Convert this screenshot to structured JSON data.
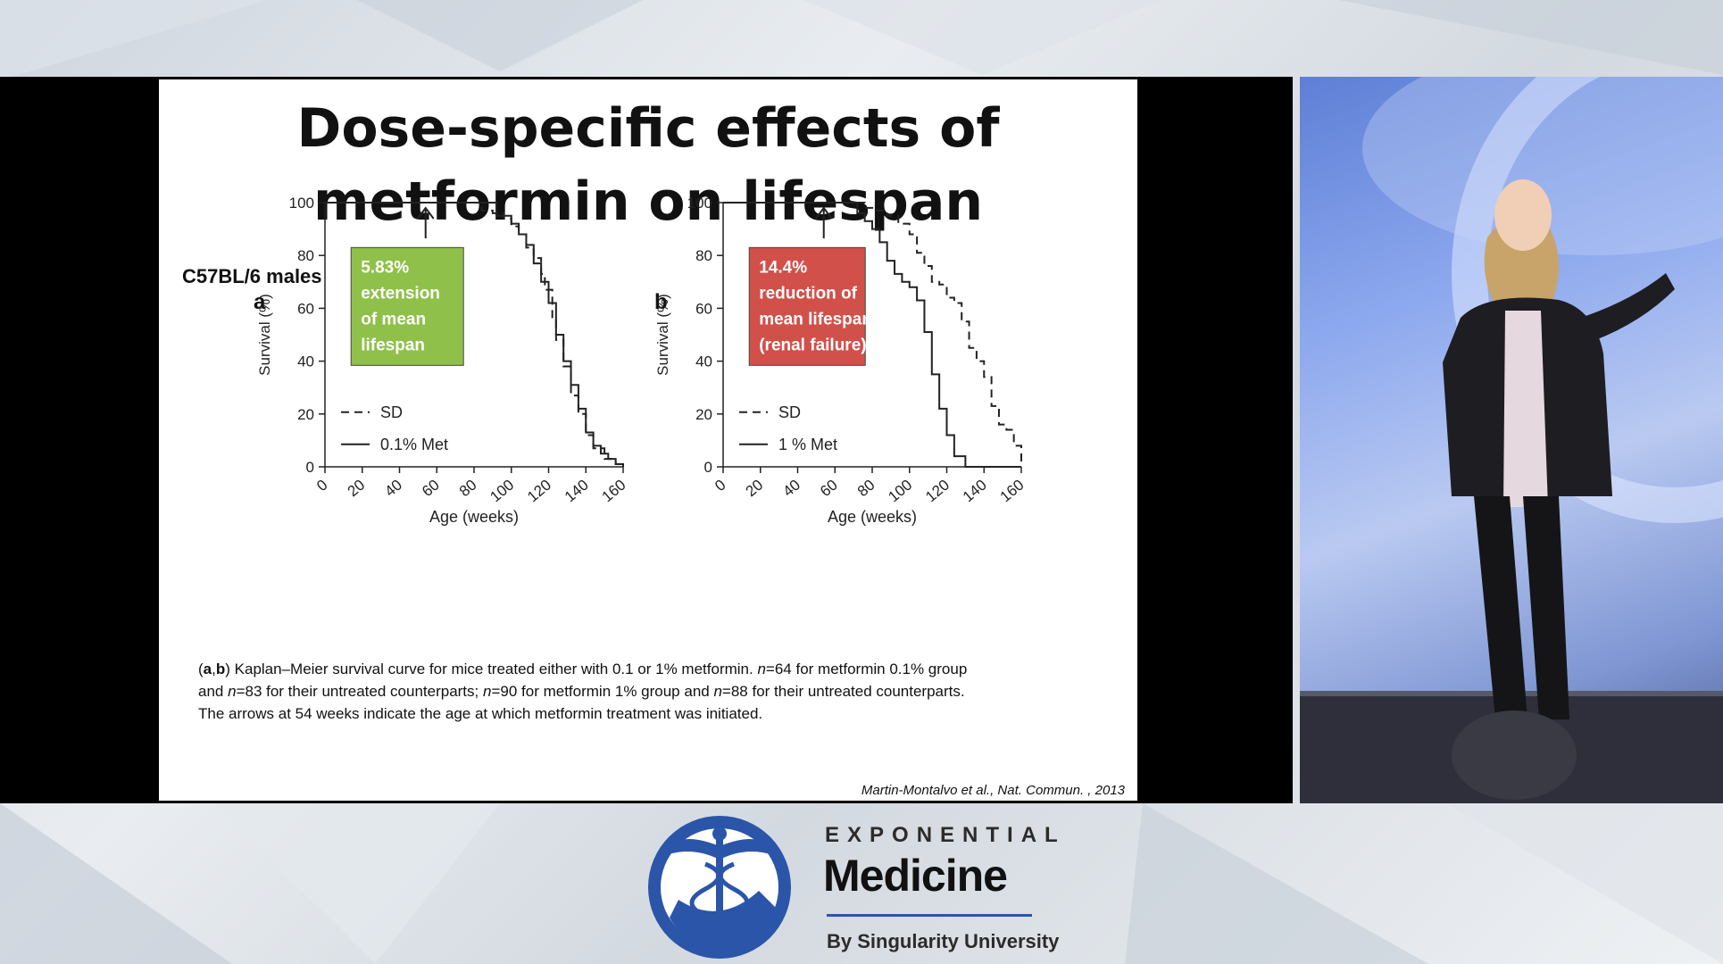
{
  "slide": {
    "title_line1": "Dose-specific effects of",
    "title_line2": "metformin on lifespan",
    "strain_label": "C57BL/6 males",
    "caption_bold_ab": "a",
    "caption_bold_b": "b",
    "caption_1": ") Kaplan–Meier survival curve for mice treated either with 0.1 or 1% metformin. ",
    "caption_n": "n",
    "caption_2": "=64 for metformin 0.1% group",
    "caption_3": "and ",
    "caption_4": "=83 for their untreated counterparts; ",
    "caption_5": "=90 for metformin 1% group and ",
    "caption_6": "=88 for their untreated counterparts.",
    "caption_7": "The arrows at 54 weeks indicate the age at which metformin treatment was initiated.",
    "citation": "Martin-Montalvo et al., Nat. Commun. , 2013"
  },
  "chart_data": [
    {
      "type": "line",
      "panel": "a",
      "xlabel": "Age (weeks)",
      "ylabel": "Survival (%)",
      "xlim": [
        0,
        160
      ],
      "ylim": [
        0,
        100
      ],
      "xticks": [
        "0",
        "20",
        "40",
        "60",
        "80",
        "100",
        "120",
        "140",
        "160"
      ],
      "yticks": [
        "0",
        "20",
        "40",
        "60",
        "80",
        "100"
      ],
      "arrow_x": 54,
      "annotation": [
        "5.83%",
        "extension",
        "of mean",
        "lifespan"
      ],
      "annotation_color": "#8fc04a",
      "series": [
        {
          "name": "SD",
          "style": "dashed",
          "x": [
            0,
            78,
            84,
            90,
            96,
            100,
            104,
            108,
            112,
            116,
            118,
            122,
            124,
            128,
            132,
            136,
            140,
            144,
            150,
            156,
            160
          ],
          "y": [
            100,
            100,
            97,
            96,
            94,
            91,
            88,
            83,
            79,
            73,
            67,
            56,
            48,
            38,
            27,
            20,
            12,
            7,
            3,
            1,
            0
          ]
        },
        {
          "name": "0.1% Met",
          "style": "solid",
          "x": [
            0,
            88,
            92,
            96,
            100,
            104,
            108,
            112,
            116,
            120,
            124,
            128,
            132,
            136,
            140,
            144,
            148,
            152,
            156,
            160
          ],
          "y": [
            100,
            100,
            95,
            95,
            92,
            88,
            84,
            77,
            70,
            62,
            50,
            40,
            31,
            22,
            13,
            8,
            5,
            3,
            1,
            0
          ]
        }
      ]
    },
    {
      "type": "line",
      "panel": "b",
      "xlabel": "Age (weeks)",
      "ylabel": "Survival (%)",
      "xlim": [
        0,
        160
      ],
      "ylim": [
        0,
        100
      ],
      "xticks": [
        "0",
        "20",
        "40",
        "60",
        "80",
        "100",
        "120",
        "140",
        "160"
      ],
      "yticks": [
        "0",
        "20",
        "40",
        "60",
        "80",
        "100"
      ],
      "arrow_x": 54,
      "annotation": [
        "14.4%",
        "reduction of",
        "mean lifespan",
        "(renal failure)"
      ],
      "annotation_color": "#d1504a",
      "series": [
        {
          "name": "SD",
          "style": "dashed",
          "x": [
            0,
            70,
            76,
            82,
            88,
            94,
            100,
            104,
            108,
            112,
            116,
            120,
            124,
            128,
            132,
            136,
            140,
            144,
            148,
            152,
            156,
            160
          ],
          "y": [
            100,
            100,
            98,
            97,
            95,
            92,
            88,
            81,
            76,
            70,
            69,
            64,
            62,
            55,
            45,
            40,
            34,
            23,
            16,
            14,
            8,
            1
          ]
        },
        {
          "name": "1 % Met",
          "style": "solid",
          "x": [
            0,
            66,
            72,
            76,
            80,
            84,
            88,
            92,
            96,
            100,
            104,
            108,
            112,
            116,
            120,
            124,
            130,
            160
          ],
          "y": [
            100,
            100,
            96,
            93,
            90,
            85,
            78,
            73,
            70,
            68,
            63,
            51,
            35,
            22,
            12,
            4,
            0,
            0
          ]
        }
      ]
    }
  ],
  "logo": {
    "word1": "EXPONENTIAL",
    "word2": "Medicine",
    "tagline": "By Singularity University",
    "color": "#2b55a8"
  }
}
